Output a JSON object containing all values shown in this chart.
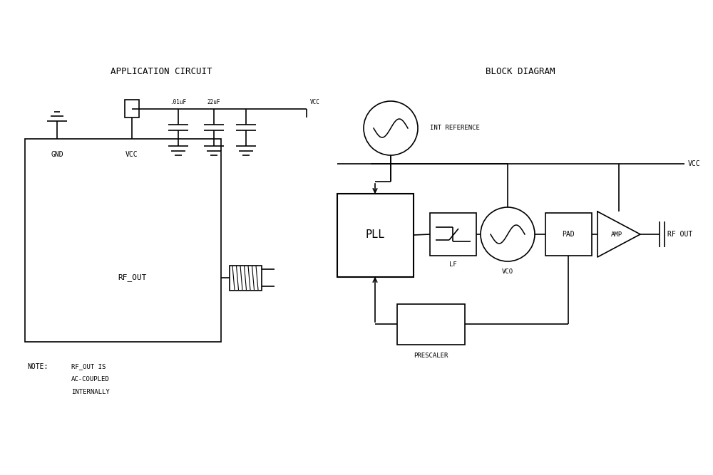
{
  "bg_color": "#ffffff",
  "line_color": "#000000",
  "title_left": "APPLICATION CIRCUIT",
  "title_right": "BLOCK DIAGRAM",
  "note_label": "NOTE:",
  "note_lines": [
    "RF_OUT IS",
    "AC-COUPLED",
    "INTERNALLY"
  ],
  "font_family": "monospace"
}
